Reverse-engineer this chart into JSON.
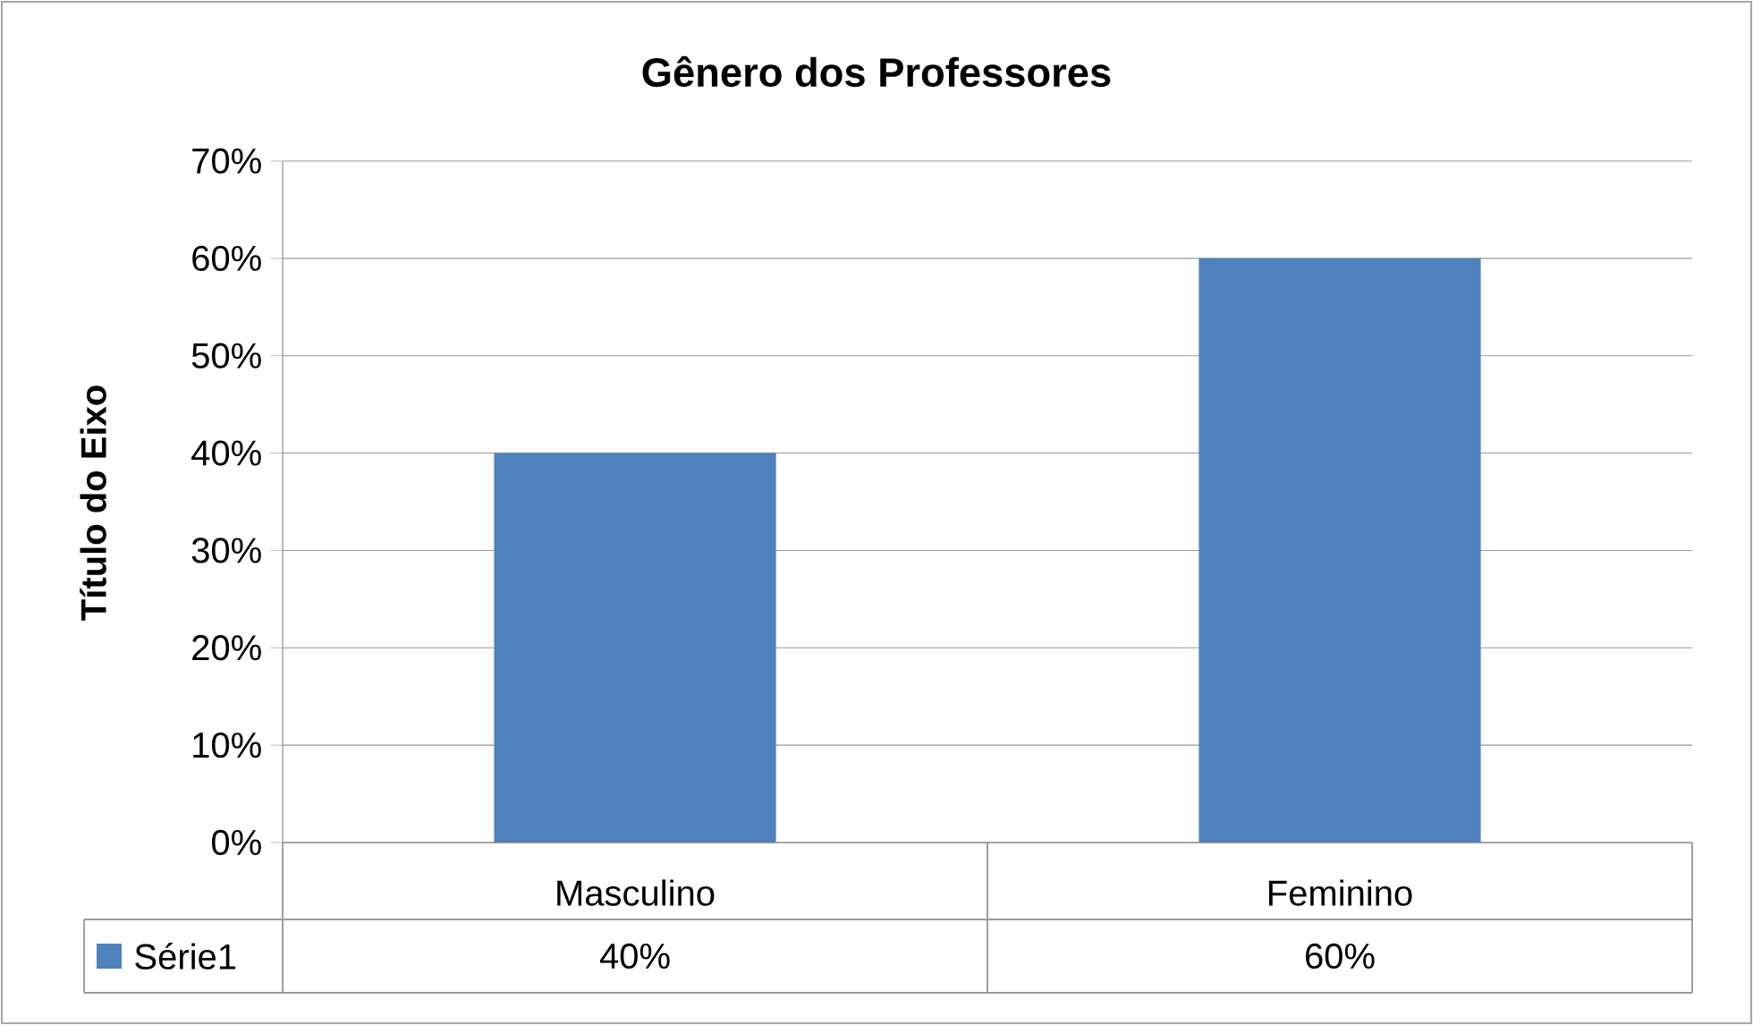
{
  "chart_data": {
    "type": "bar",
    "title": "Gênero dos Professores",
    "ylabel": "Título do Eixo",
    "categories": [
      "Masculino",
      "Feminino"
    ],
    "series": [
      {
        "name": "Série1",
        "color": "#4f81bd",
        "values": [
          40,
          60
        ],
        "value_labels": [
          "40%",
          "60%"
        ]
      }
    ],
    "ylim": [
      0,
      70
    ],
    "yticks": [
      {
        "value": 0,
        "label": "0%"
      },
      {
        "value": 10,
        "label": "10%"
      },
      {
        "value": 20,
        "label": "20%"
      },
      {
        "value": 30,
        "label": "30%"
      },
      {
        "value": 40,
        "label": "40%"
      },
      {
        "value": 50,
        "label": "50%"
      },
      {
        "value": 60,
        "label": "60%"
      },
      {
        "value": 70,
        "label": "70%"
      }
    ],
    "grid": "y",
    "legend": "bottom left"
  }
}
